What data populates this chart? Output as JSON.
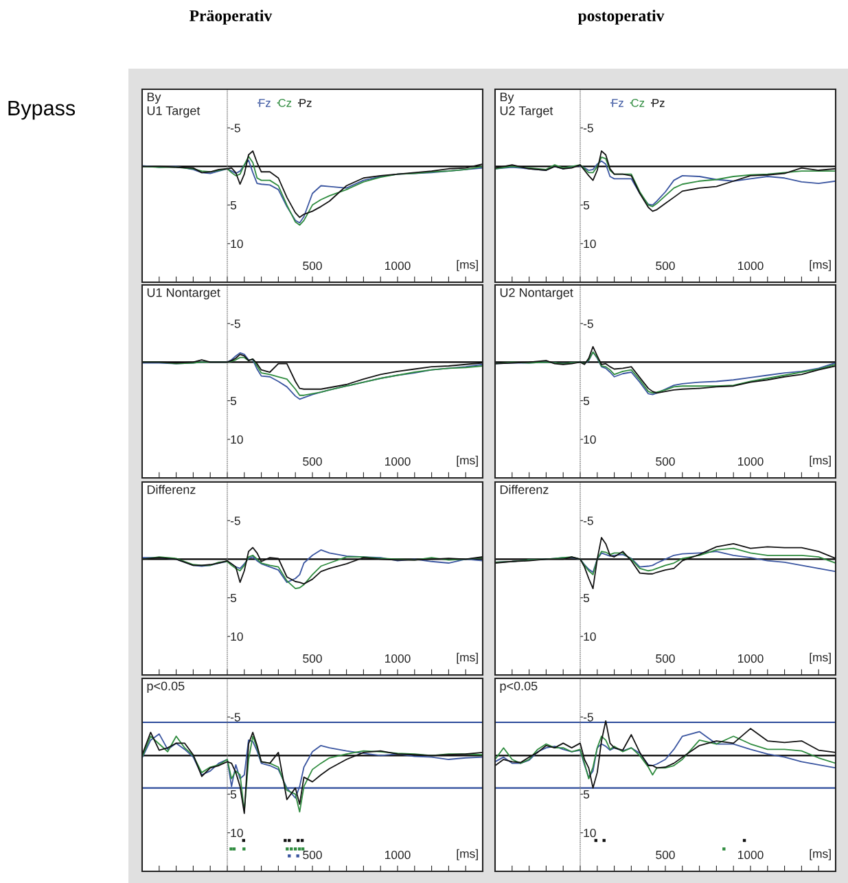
{
  "chart_data": [
    {
      "type": "line",
      "title": "Präoperativ",
      "subtitle": "By\nU1 Target",
      "annotations": [
        "Bypass"
      ],
      "xlabel": "[ms]",
      "legend": "top",
      "x": [
        -500,
        -400,
        -300,
        -200,
        -150,
        -100,
        -50,
        0,
        25,
        50,
        75,
        100,
        125,
        150,
        175,
        200,
        250,
        300,
        350,
        400,
        425,
        450,
        500,
        550,
        600,
        700,
        800,
        900,
        1000,
        1100,
        1200,
        1300,
        1400,
        1500
      ],
      "xlim": [
        -500,
        1500
      ],
      "xticks": [
        {
          "value": -400,
          "label": null
        },
        {
          "value": -300,
          "label": null
        },
        {
          "value": -200,
          "label": null
        },
        {
          "value": -100,
          "label": null
        },
        {
          "value": 0,
          "label": null
        },
        {
          "value": 100,
          "label": null
        },
        {
          "value": 200,
          "label": null
        },
        {
          "value": 300,
          "label": null
        },
        {
          "value": 400,
          "label": null
        },
        500,
        {
          "value": 600,
          "label": null
        },
        {
          "value": 700,
          "label": null
        },
        {
          "value": 800,
          "label": null
        },
        {
          "value": 900,
          "label": null
        },
        1000,
        {
          "value": 1100,
          "label": null
        },
        {
          "value": 1200,
          "label": null
        },
        {
          "value": 1300,
          "label": null
        },
        {
          "value": 1400,
          "label": null
        }
      ],
      "ylim": [
        15,
        -10
      ],
      "yticks": [
        -5,
        5,
        10
      ],
      "ref_lines": [
        {
          "axis": "y",
          "value": 0,
          "label": null,
          "color": "#000000"
        }
      ],
      "series": [
        {
          "name": "Fz",
          "color": "#3a55a0",
          "values": [
            -0.1,
            0.1,
            0,
            0.4,
            0.8,
            0.9,
            0.6,
            0.3,
            0.6,
            0.9,
            0.6,
            -0.2,
            -0.8,
            0.8,
            2.2,
            2.3,
            2.4,
            3.0,
            5.2,
            7.0,
            7.3,
            6.5,
            3.5,
            2.5,
            2.6,
            2.8,
            1.8,
            1.3,
            1.0,
            0.9,
            0.8,
            0.6,
            0.4,
            0.2
          ]
        },
        {
          "name": "Cz",
          "color": "#2e8b3e",
          "values": [
            0,
            0.1,
            0.1,
            0.3,
            0.6,
            0.7,
            0.5,
            0.3,
            0.8,
            1.2,
            1.0,
            -0.2,
            -1.3,
            -0.5,
            1.5,
            1.8,
            1.8,
            2.5,
            5.0,
            7.2,
            7.6,
            7.0,
            5.0,
            4.3,
            3.8,
            3.0,
            2.0,
            1.4,
            1.0,
            0.9,
            0.7,
            0.6,
            0.4,
            0
          ]
        },
        {
          "name": "Pz",
          "color": "#111111",
          "values": [
            0,
            0,
            0.1,
            0.2,
            0.8,
            0.7,
            0.4,
            0.3,
            0.2,
            0.8,
            2.3,
            1.0,
            -1.5,
            -2.0,
            -0.5,
            0.7,
            0.7,
            1.5,
            4.0,
            6.0,
            6.6,
            6.2,
            5.8,
            5.2,
            4.5,
            2.5,
            1.5,
            1.2,
            1.0,
            0.8,
            0.6,
            0.3,
            0.2,
            -0.3
          ]
        }
      ]
    },
    {
      "type": "line",
      "title": "postoperativ",
      "subtitle": "By\nU2 Target",
      "xlabel": "[ms]",
      "legend": "top",
      "x": [
        -500,
        -400,
        -300,
        -200,
        -150,
        -100,
        -50,
        0,
        25,
        50,
        75,
        100,
        125,
        150,
        175,
        200,
        250,
        300,
        350,
        400,
        425,
        450,
        500,
        550,
        600,
        700,
        800,
        900,
        1000,
        1100,
        1200,
        1300,
        1400,
        1500
      ],
      "xlim": [
        -500,
        1500
      ],
      "xticks": [
        {
          "value": -400,
          "label": null
        },
        {
          "value": -300,
          "label": null
        },
        {
          "value": -200,
          "label": null
        },
        {
          "value": -100,
          "label": null
        },
        {
          "value": 0,
          "label": null
        },
        {
          "value": 100,
          "label": null
        },
        {
          "value": 200,
          "label": null
        },
        {
          "value": 300,
          "label": null
        },
        {
          "value": 400,
          "label": null
        },
        500,
        {
          "value": 600,
          "label": null
        },
        {
          "value": 700,
          "label": null
        },
        {
          "value": 800,
          "label": null
        },
        {
          "value": 900,
          "label": null
        },
        1000,
        {
          "value": 1100,
          "label": null
        },
        {
          "value": 1200,
          "label": null
        },
        {
          "value": 1300,
          "label": null
        },
        {
          "value": 1400,
          "label": null
        }
      ],
      "ylim": [
        15,
        -10
      ],
      "yticks": [
        -5,
        5,
        10
      ],
      "ref_lines": [
        {
          "axis": "y",
          "value": 0,
          "label": null,
          "color": "#000000"
        }
      ],
      "series": [
        {
          "name": "Fz",
          "color": "#3a55a0",
          "values": [
            0.3,
            0.1,
            0.3,
            0.5,
            0,
            0.3,
            0,
            -0.1,
            0.2,
            0.5,
            0.4,
            -0.3,
            -0.7,
            -0.3,
            1.3,
            1.6,
            1.6,
            1.6,
            3.5,
            4.9,
            5.0,
            4.5,
            3.3,
            1.8,
            1.2,
            1.3,
            1.7,
            1.9,
            1.6,
            1.3,
            1.5,
            2.0,
            2.2,
            1.9
          ]
        },
        {
          "name": "Cz",
          "color": "#2e8b3e",
          "values": [
            0.3,
            0,
            0.2,
            0.4,
            -0.2,
            0.2,
            0,
            -0.2,
            0.3,
            0.8,
            0.8,
            0,
            -1.2,
            -1.0,
            0.5,
            1.0,
            1.0,
            1.0,
            3.3,
            5.0,
            5.2,
            4.8,
            3.8,
            2.8,
            2.3,
            1.9,
            1.7,
            1.3,
            1.1,
            1.0,
            0.8,
            0.6,
            0.6,
            0.6
          ]
        },
        {
          "name": "Pz",
          "color": "#111111",
          "values": [
            0.2,
            -0.2,
            0.3,
            0.5,
            0,
            0.3,
            0.2,
            -0.2,
            0.5,
            1.2,
            1.8,
            0.5,
            -2.0,
            -1.5,
            0.3,
            1.0,
            1.0,
            1.2,
            3.5,
            5.3,
            5.8,
            5.6,
            4.8,
            4.0,
            3.2,
            2.8,
            2.6,
            1.9,
            1.2,
            1.1,
            0.9,
            0.2,
            0.5,
            0.3
          ]
        }
      ]
    },
    {
      "type": "line",
      "subtitle": "U1 Nontarget",
      "xlabel": "[ms]",
      "x": [
        -500,
        -400,
        -300,
        -200,
        -150,
        -100,
        -50,
        0,
        25,
        50,
        75,
        100,
        125,
        150,
        175,
        200,
        250,
        300,
        350,
        400,
        425,
        450,
        500,
        550,
        600,
        700,
        800,
        900,
        1000,
        1100,
        1200,
        1300,
        1400,
        1500
      ],
      "xlim": [
        -500,
        1500
      ],
      "xticks": [
        {
          "value": -400,
          "label": null
        },
        {
          "value": -300,
          "label": null
        },
        {
          "value": -200,
          "label": null
        },
        {
          "value": -100,
          "label": null
        },
        {
          "value": 0,
          "label": null
        },
        {
          "value": 100,
          "label": null
        },
        {
          "value": 200,
          "label": null
        },
        {
          "value": 300,
          "label": null
        },
        {
          "value": 400,
          "label": null
        },
        500,
        {
          "value": 600,
          "label": null
        },
        {
          "value": 700,
          "label": null
        },
        {
          "value": 800,
          "label": null
        },
        {
          "value": 900,
          "label": null
        },
        1000,
        {
          "value": 1100,
          "label": null
        },
        {
          "value": 1200,
          "label": null
        },
        {
          "value": 1300,
          "label": null
        },
        {
          "value": 1400,
          "label": null
        }
      ],
      "ylim": [
        15,
        -10
      ],
      "yticks": [
        -5,
        5,
        10
      ],
      "ref_lines": [
        {
          "axis": "y",
          "value": 0,
          "label": null,
          "color": "#000000"
        }
      ],
      "series": [
        {
          "color": "#3a55a0",
          "values": [
            0.1,
            0.1,
            0.2,
            0.1,
            0,
            0,
            0,
            0,
            -0.3,
            -0.8,
            -1.2,
            -1.0,
            -0.3,
            -0.3,
            0.9,
            1.8,
            1.9,
            2.5,
            3.2,
            4.4,
            4.8,
            4.6,
            4.2,
            3.9,
            3.6,
            3.1,
            2.6,
            2.1,
            1.7,
            1.4,
            1.0,
            0.8,
            0.6,
            0.3
          ]
        },
        {
          "color": "#2e8b3e",
          "values": [
            0,
            0,
            0.2,
            0.1,
            0,
            0,
            0,
            0,
            -0.1,
            -0.3,
            -0.6,
            -0.6,
            -0.2,
            -0.4,
            0.5,
            1.4,
            1.6,
            1.9,
            2.2,
            3.5,
            4.3,
            4.3,
            4.1,
            3.9,
            3.6,
            3.1,
            2.6,
            2.1,
            1.7,
            1.3,
            1.0,
            0.8,
            0.7,
            0.5
          ]
        },
        {
          "color": "#111111",
          "values": [
            0,
            0,
            0.1,
            0,
            -0.3,
            0,
            0,
            0,
            -0.2,
            -0.5,
            -1.0,
            -0.8,
            -0.2,
            -0.4,
            0.2,
            1.0,
            1.3,
            0.2,
            0.2,
            2.5,
            3.4,
            3.5,
            3.5,
            3.5,
            3.3,
            2.9,
            2.2,
            1.6,
            1.2,
            0.9,
            0.6,
            0.5,
            0.3,
            0.1
          ]
        }
      ]
    },
    {
      "type": "line",
      "subtitle": "U2 Nontarget",
      "xlabel": "[ms]",
      "x": [
        -500,
        -400,
        -300,
        -200,
        -150,
        -100,
        -50,
        0,
        25,
        50,
        75,
        100,
        125,
        150,
        175,
        200,
        250,
        300,
        350,
        400,
        425,
        450,
        500,
        550,
        600,
        700,
        800,
        900,
        1000,
        1100,
        1200,
        1300,
        1400,
        1500
      ],
      "xlim": [
        -500,
        1500
      ],
      "xticks": [
        {
          "value": -400,
          "label": null
        },
        {
          "value": -300,
          "label": null
        },
        {
          "value": -200,
          "label": null
        },
        {
          "value": -100,
          "label": null
        },
        {
          "value": 0,
          "label": null
        },
        {
          "value": 100,
          "label": null
        },
        {
          "value": 200,
          "label": null
        },
        {
          "value": 300,
          "label": null
        },
        {
          "value": 400,
          "label": null
        },
        500,
        {
          "value": 600,
          "label": null
        },
        {
          "value": 700,
          "label": null
        },
        {
          "value": 800,
          "label": null
        },
        {
          "value": 900,
          "label": null
        },
        1000,
        {
          "value": 1100,
          "label": null
        },
        {
          "value": 1200,
          "label": null
        },
        {
          "value": 1300,
          "label": null
        },
        {
          "value": 1400,
          "label": null
        }
      ],
      "ylim": [
        15,
        -10
      ],
      "yticks": [
        -5,
        5,
        10
      ],
      "ref_lines": [
        {
          "axis": "y",
          "value": 0,
          "label": null,
          "color": "#000000"
        }
      ],
      "series": [
        {
          "color": "#3a55a0",
          "values": [
            0.2,
            0.1,
            0.1,
            0,
            0.1,
            0.2,
            0.1,
            0,
            0.2,
            -0.2,
            -1.3,
            -0.5,
            0.6,
            0.8,
            1.3,
            1.9,
            1.5,
            1.3,
            2.6,
            4.1,
            4.2,
            4.0,
            3.5,
            3.0,
            2.8,
            2.6,
            2.5,
            2.3,
            2.0,
            1.7,
            1.4,
            1.2,
            0.8,
            0.1
          ]
        },
        {
          "color": "#2e8b3e",
          "values": [
            0.2,
            0,
            0.1,
            0,
            0.1,
            0.2,
            0.1,
            0,
            0.2,
            -0.3,
            -1.3,
            -0.6,
            0.5,
            0.6,
            1.0,
            1.6,
            1.2,
            1.0,
            2.3,
            3.8,
            4.0,
            3.9,
            3.6,
            3.2,
            3.1,
            3.1,
            3.1,
            3.0,
            2.5,
            2.1,
            1.7,
            1.3,
            0.9,
            0.3
          ]
        },
        {
          "color": "#111111",
          "values": [
            0.2,
            0.1,
            0,
            -0.2,
            0.2,
            0.3,
            0.2,
            0,
            0.3,
            -0.5,
            -2.0,
            -0.8,
            0.3,
            0.2,
            0.6,
            0.9,
            0.8,
            0.6,
            2.0,
            3.4,
            3.8,
            4.0,
            3.8,
            3.6,
            3.5,
            3.4,
            3.2,
            3.1,
            2.6,
            2.3,
            1.9,
            1.6,
            1.0,
            0.5
          ]
        }
      ]
    },
    {
      "type": "line",
      "subtitle": "Differenz",
      "xlabel": "[ms]",
      "x": [
        -500,
        -400,
        -300,
        -200,
        -150,
        -100,
        -50,
        0,
        25,
        50,
        75,
        100,
        125,
        150,
        175,
        200,
        250,
        300,
        350,
        400,
        425,
        450,
        500,
        550,
        600,
        700,
        800,
        900,
        1000,
        1100,
        1200,
        1300,
        1400,
        1500
      ],
      "xlim": [
        -500,
        1500
      ],
      "xticks": [
        {
          "value": -400,
          "label": null
        },
        {
          "value": -300,
          "label": null
        },
        {
          "value": -200,
          "label": null
        },
        {
          "value": -100,
          "label": null
        },
        {
          "value": 0,
          "label": null
        },
        {
          "value": 100,
          "label": null
        },
        {
          "value": 200,
          "label": null
        },
        {
          "value": 300,
          "label": null
        },
        {
          "value": 400,
          "label": null
        },
        500,
        {
          "value": 600,
          "label": null
        },
        {
          "value": 700,
          "label": null
        },
        {
          "value": 800,
          "label": null
        },
        {
          "value": 900,
          "label": null
        },
        1000,
        {
          "value": 1100,
          "label": null
        },
        {
          "value": 1200,
          "label": null
        },
        {
          "value": 1300,
          "label": null
        },
        {
          "value": 1400,
          "label": null
        }
      ],
      "ylim": [
        15,
        -10
      ],
      "yticks": [
        -5,
        5,
        10
      ],
      "ref_lines": [
        {
          "axis": "y",
          "value": 0,
          "label": null,
          "color": "#000000"
        }
      ],
      "series": [
        {
          "color": "#3a55a0",
          "values": [
            -0.2,
            -0.2,
            0,
            0.8,
            0.9,
            0.8,
            0.5,
            0.3,
            0.6,
            1.0,
            1.2,
            0.6,
            -0.1,
            -0.3,
            0.2,
            0.6,
            1.0,
            1.4,
            3.0,
            2.5,
            2.0,
            0.5,
            -0.5,
            -1.2,
            -0.8,
            -0.4,
            -0.3,
            -0.2,
            0.2,
            0,
            0.3,
            0.5,
            0,
            0.2
          ]
        },
        {
          "color": "#2e8b3e",
          "values": [
            0,
            -0.3,
            -0.1,
            0.7,
            0.8,
            0.8,
            0.4,
            0.3,
            0.8,
            1.2,
            1.5,
            0.8,
            -0.3,
            -0.5,
            0,
            0.5,
            0.8,
            1.0,
            2.8,
            3.8,
            3.7,
            3.3,
            2.0,
            0.9,
            0.5,
            -0.3,
            -0.3,
            -0.1,
            0,
            0.1,
            -0.2,
            0.1,
            0,
            -0.2
          ]
        },
        {
          "color": "#111111",
          "values": [
            0,
            -0.2,
            0,
            0.8,
            0.8,
            0.7,
            0.5,
            0.2,
            0.6,
            1.0,
            3.0,
            1.5,
            -1.0,
            -1.5,
            -0.8,
            0.3,
            -0.2,
            -0.1,
            2.3,
            2.9,
            3.0,
            3.2,
            2.6,
            1.6,
            1.2,
            0.6,
            -0.2,
            0,
            0.1,
            0.1,
            0,
            -0.1,
            0,
            -0.3
          ]
        }
      ]
    },
    {
      "type": "line",
      "subtitle": "Differenz",
      "xlabel": "[ms]",
      "x": [
        -500,
        -400,
        -300,
        -200,
        -150,
        -100,
        -50,
        0,
        25,
        50,
        75,
        100,
        125,
        150,
        175,
        200,
        250,
        300,
        350,
        400,
        425,
        450,
        500,
        550,
        600,
        700,
        800,
        900,
        1000,
        1100,
        1200,
        1300,
        1400,
        1500
      ],
      "xlim": [
        -500,
        1500
      ],
      "xticks": [
        {
          "value": -400,
          "label": null
        },
        {
          "value": -300,
          "label": null
        },
        {
          "value": -200,
          "label": null
        },
        {
          "value": -100,
          "label": null
        },
        {
          "value": 0,
          "label": null
        },
        {
          "value": 100,
          "label": null
        },
        {
          "value": 200,
          "label": null
        },
        {
          "value": 300,
          "label": null
        },
        {
          "value": 400,
          "label": null
        },
        500,
        {
          "value": 600,
          "label": null
        },
        {
          "value": 700,
          "label": null
        },
        {
          "value": 800,
          "label": null
        },
        {
          "value": 900,
          "label": null
        },
        1000,
        {
          "value": 1100,
          "label": null
        },
        {
          "value": 1200,
          "label": null
        },
        {
          "value": 1300,
          "label": null
        },
        {
          "value": 1400,
          "label": null
        }
      ],
      "ylim": [
        15,
        -10
      ],
      "yticks": [
        -5,
        5,
        10
      ],
      "ref_lines": [
        {
          "axis": "y",
          "value": 0,
          "label": null,
          "color": "#000000"
        }
      ],
      "series": [
        {
          "color": "#3a55a0",
          "values": [
            0.4,
            0.3,
            0.1,
            0,
            -0.1,
            -0.2,
            -0.2,
            0,
            0.7,
            1.3,
            1.7,
            0,
            -0.8,
            -0.6,
            -0.4,
            -0.5,
            -0.6,
            -0.1,
            1.0,
            0.9,
            0.8,
            0.5,
            0,
            -0.5,
            -0.7,
            -0.8,
            -1.0,
            -0.5,
            -0.2,
            0.2,
            0.4,
            0.8,
            1.2,
            1.6
          ]
        },
        {
          "color": "#2e8b3e",
          "values": [
            0.4,
            0.3,
            0.1,
            0,
            -0.1,
            -0.2,
            -0.3,
            0,
            0.8,
            1.5,
            2.0,
            0,
            -1.0,
            -0.9,
            -0.6,
            -0.8,
            -0.8,
            0,
            1.2,
            1.5,
            1.4,
            1.2,
            0.8,
            0.5,
            -0.1,
            -0.5,
            -1.2,
            -1.4,
            -0.8,
            -0.5,
            -0.5,
            -0.5,
            -0.3,
            0.5
          ]
        },
        {
          "color": "#111111",
          "values": [
            0.5,
            0.3,
            0.2,
            0,
            0,
            0,
            -0.3,
            0,
            1.0,
            2.5,
            3.8,
            0,
            -2.8,
            -2.0,
            -0.5,
            -0.3,
            -1.0,
            0.2,
            1.8,
            1.9,
            1.9,
            1.7,
            1.4,
            1.2,
            0.2,
            -0.6,
            -1.6,
            -2.0,
            -1.4,
            -1.6,
            -1.5,
            -1.5,
            -1.0,
            -0.1
          ]
        }
      ]
    },
    {
      "type": "line",
      "subtitle": "p<0.05",
      "xlabel": "[ms]",
      "x": [
        -500,
        -450,
        -400,
        -350,
        -300,
        -250,
        -200,
        -150,
        -100,
        -50,
        0,
        25,
        50,
        75,
        100,
        125,
        150,
        175,
        200,
        250,
        300,
        350,
        400,
        425,
        450,
        500,
        550,
        600,
        700,
        800,
        900,
        1000,
        1100,
        1200,
        1300,
        1400,
        1500
      ],
      "xlim": [
        -500,
        1500
      ],
      "xticks": [
        {
          "value": -400,
          "label": null
        },
        {
          "value": -300,
          "label": null
        },
        {
          "value": -200,
          "label": null
        },
        {
          "value": -100,
          "label": null
        },
        {
          "value": 0,
          "label": null
        },
        {
          "value": 100,
          "label": null
        },
        {
          "value": 200,
          "label": null
        },
        {
          "value": 300,
          "label": null
        },
        {
          "value": 400,
          "label": null
        },
        500,
        {
          "value": 600,
          "label": null
        },
        {
          "value": 700,
          "label": null
        },
        {
          "value": 800,
          "label": null
        },
        {
          "value": 900,
          "label": null
        },
        1000,
        {
          "value": 1100,
          "label": null
        },
        {
          "value": 1200,
          "label": null
        },
        {
          "value": 1300,
          "label": null
        },
        {
          "value": 1400,
          "label": null
        }
      ],
      "ylim": [
        15,
        -10
      ],
      "yticks": [
        -5,
        5,
        10
      ],
      "ref_lines": [
        {
          "axis": "y",
          "value": 0,
          "label": null,
          "color": "#000000"
        },
        {
          "axis": "y",
          "value": -4.3,
          "label": null,
          "color": "#2b4a9a"
        },
        {
          "axis": "y",
          "value": 4.2,
          "label": null,
          "color": "#2b4a9a"
        }
      ],
      "series": [
        {
          "color": "#3a55a0",
          "values": [
            0.3,
            -2.0,
            -2.8,
            -0.8,
            -1.6,
            -0.8,
            0.2,
            2.5,
            2.0,
            1.0,
            0.5,
            4.0,
            1.2,
            3.0,
            2.5,
            -2.0,
            -1.8,
            -0.6,
            1.0,
            1.3,
            1.8,
            4.2,
            5.5,
            4.0,
            1.5,
            -0.5,
            -1.3,
            -1.0,
            -0.6,
            -0.3,
            0,
            -0.2,
            0.1,
            0.2,
            0.5,
            0.3,
            0.2
          ]
        },
        {
          "color": "#2e8b3e",
          "values": [
            0.2,
            -2.5,
            -1.5,
            -0.5,
            -2.5,
            -1.0,
            0,
            2.2,
            1.5,
            1.2,
            0.5,
            3.0,
            2.0,
            2.5,
            7.2,
            0.5,
            -2.5,
            -1.0,
            0.8,
            1.0,
            1.5,
            4.5,
            5.0,
            7.3,
            4.0,
            1.8,
            1.0,
            0.3,
            -0.2,
            -0.6,
            -0.5,
            -0.3,
            -0.2,
            0,
            -0.2,
            -0.2,
            -0.1
          ]
        },
        {
          "color": "#111111",
          "values": [
            -0.1,
            -3.0,
            -0.7,
            -1.0,
            -1.6,
            -1.6,
            -0.1,
            2.7,
            1.6,
            1.3,
            0.8,
            1.0,
            2.2,
            4.0,
            7.5,
            -1.5,
            -3.0,
            -1.3,
            0.8,
            1.0,
            -0.4,
            5.7,
            4.2,
            6.3,
            2.8,
            3.4,
            2.5,
            1.7,
            0.5,
            -0.4,
            -0.6,
            -0.2,
            -0.1,
            0,
            -0.1,
            -0.2,
            -0.4
          ]
        },
        {
          "type": "scatter",
          "color": "#111111",
          "x": [
            96,
            340,
            364,
            416,
            440
          ],
          "values": [
            11,
            11,
            11,
            11,
            11
          ]
        },
        {
          "type": "scatter",
          "color": "#2e8b3e",
          "x": [
            22,
            40,
            98,
            352,
            376,
            400,
            424,
            444
          ],
          "values": [
            12.1,
            12.1,
            12.1,
            12.1,
            12.1,
            12.1,
            12.1,
            12.1
          ]
        },
        {
          "type": "scatter",
          "color": "#3a55a0",
          "x": [
            364,
            414
          ],
          "values": [
            13,
            13
          ]
        }
      ]
    },
    {
      "type": "line",
      "subtitle": "p<0.05",
      "xlabel": "[ms]",
      "x": [
        -500,
        -450,
        -400,
        -350,
        -300,
        -250,
        -200,
        -150,
        -100,
        -50,
        0,
        25,
        50,
        75,
        100,
        125,
        150,
        175,
        200,
        250,
        300,
        350,
        400,
        425,
        450,
        500,
        550,
        600,
        700,
        800,
        900,
        1000,
        1100,
        1200,
        1300,
        1400,
        1500
      ],
      "xlim": [
        -500,
        1500
      ],
      "xticks": [
        {
          "value": -400,
          "label": null
        },
        {
          "value": -300,
          "label": null
        },
        {
          "value": -200,
          "label": null
        },
        {
          "value": -100,
          "label": null
        },
        {
          "value": 0,
          "label": null
        },
        {
          "value": 100,
          "label": null
        },
        {
          "value": 200,
          "label": null
        },
        {
          "value": 300,
          "label": null
        },
        {
          "value": 400,
          "label": null
        },
        500,
        {
          "value": 600,
          "label": null
        },
        {
          "value": 700,
          "label": null
        },
        {
          "value": 800,
          "label": null
        },
        {
          "value": 900,
          "label": null
        },
        1000,
        {
          "value": 1100,
          "label": null
        },
        {
          "value": 1200,
          "label": null
        },
        {
          "value": 1300,
          "label": null
        },
        {
          "value": 1400,
          "label": null
        }
      ],
      "ylim": [
        15,
        -10
      ],
      "yticks": [
        -5,
        5,
        10
      ],
      "ref_lines": [
        {
          "axis": "y",
          "value": 0,
          "label": null,
          "color": "#000000"
        },
        {
          "axis": "y",
          "value": -4.3,
          "label": null,
          "color": "#2b4a9a"
        },
        {
          "axis": "y",
          "value": 4.2,
          "label": null,
          "color": "#2b4a9a"
        }
      ],
      "series": [
        {
          "color": "#3a55a0",
          "values": [
            0.8,
            0.2,
            1.0,
            1.0,
            0.6,
            -0.5,
            -1.0,
            -1.2,
            -0.8,
            -0.5,
            -0.7,
            1.2,
            2.8,
            2.0,
            -1.0,
            -1.5,
            -1.2,
            -0.7,
            -1.0,
            -0.6,
            -1.0,
            -0.3,
            1.2,
            1.3,
            1.1,
            0.5,
            -0.8,
            -2.5,
            -3.1,
            -1.5,
            -1.5,
            -0.8,
            -0.2,
            0.2,
            0.8,
            1.2,
            1.6
          ]
        },
        {
          "color": "#2e8b3e",
          "values": [
            0.5,
            -1.0,
            0.5,
            1.0,
            0.5,
            -0.8,
            -1.5,
            -1.0,
            -1.0,
            -0.5,
            -0.8,
            1.0,
            3.0,
            1.5,
            -1.0,
            -2.5,
            -2.0,
            -0.8,
            -1.2,
            -0.5,
            -1.0,
            0,
            1.5,
            2.5,
            1.6,
            1.6,
            1.3,
            0.5,
            -2.0,
            -1.5,
            -2.5,
            -1.5,
            -0.8,
            -0.8,
            -0.6,
            0.3,
            1.0
          ]
        },
        {
          "color": "#111111",
          "values": [
            1.3,
            0.5,
            0.8,
            0.9,
            0.2,
            -0.4,
            -1.3,
            -1.0,
            -1.6,
            -1.0,
            -1.6,
            0.5,
            1.6,
            4.2,
            2.2,
            -1.9,
            -4.5,
            -1.6,
            -1.0,
            -0.7,
            -2.7,
            -0.4,
            1.3,
            1.3,
            1.6,
            1.5,
            1.0,
            0.2,
            -1.3,
            -1.9,
            -1.6,
            -3.5,
            -1.9,
            -1.7,
            -1.9,
            -0.7,
            -0.4
          ]
        },
        {
          "type": "scatter",
          "color": "#111111",
          "x": [
            92,
            140,
            964
          ],
          "values": [
            11,
            11,
            11
          ]
        },
        {
          "type": "scatter",
          "color": "#2e8b3e",
          "x": [
            844
          ],
          "values": [
            12.1
          ]
        }
      ]
    }
  ]
}
